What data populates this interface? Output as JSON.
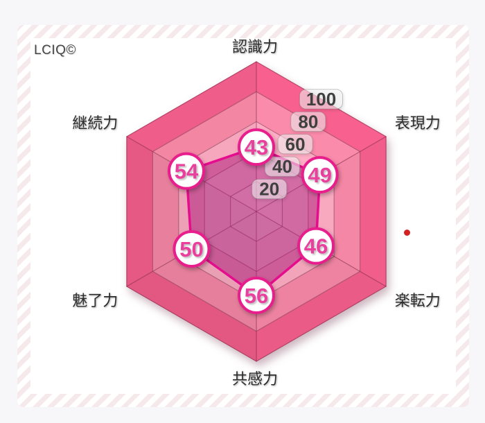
{
  "chart_data": {
    "type": "radar",
    "title": "LCIQ©",
    "shape": "hexagon",
    "categories": [
      "認識力",
      "表現力",
      "楽転力",
      "共感力",
      "魅了力",
      "継続力"
    ],
    "series": [
      {
        "values": [
          43,
          49,
          46,
          56,
          50,
          54
        ]
      }
    ],
    "max": 100,
    "range": [
      0,
      100
    ],
    "grid_step": 20,
    "grid_levels": [
      100,
      80,
      60,
      40,
      20
    ],
    "tick_labels": [
      "100",
      "80",
      "60",
      "40",
      "20"
    ],
    "grid": true,
    "legend_position": "none",
    "colors": {
      "ring_bands": [
        "#f15e8b",
        "#f487a5",
        "#f8a9c0",
        "#fabdcf",
        "#fbc9d7"
      ],
      "data_fill": "rgba(167,21,117,0.5)",
      "data_stroke": "#e50c8e",
      "grid_line": "rgba(120,40,65,0.5)",
      "marker_ring": "#e71e8c",
      "marker_text": "#ea3f9d",
      "tick_fill": "rgba(255,255,255,0.55)",
      "tick_border": "rgba(140,140,140,0.5)",
      "tick_text": "#3f3f3f",
      "axis_text": "#2d2d2d",
      "stripe_pink": "#f6e9ec",
      "red_dot": "#d32222"
    }
  }
}
